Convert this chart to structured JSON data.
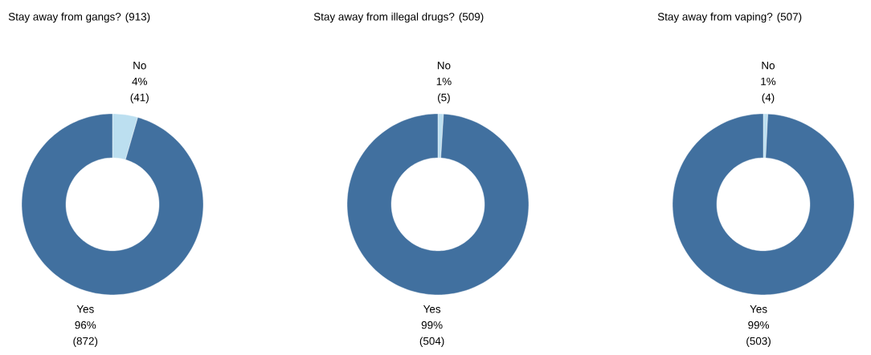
{
  "chart_data": [
    {
      "type": "donut",
      "title": "Stay away from gangs? (913)",
      "categories": [
        "No",
        "Yes"
      ],
      "values": [
        41,
        872
      ],
      "colors": [
        "#bcdff0",
        "#41709f"
      ],
      "value_labels": [
        "4% (41)",
        "96% (872)"
      ]
    },
    {
      "type": "donut",
      "title": "Stay away from illegal drugs? (509)",
      "categories": [
        "No",
        "Yes"
      ],
      "values": [
        5,
        504
      ],
      "colors": [
        "#bcdff0",
        "#41709f"
      ],
      "value_labels": [
        "1% (5)",
        "99% (504)"
      ]
    },
    {
      "type": "donut",
      "title": "Stay away from vaping? (507)",
      "categories": [
        "No",
        "Yes"
      ],
      "values": [
        4,
        503
      ],
      "colors": [
        "#bcdff0",
        "#41709f"
      ],
      "value_labels": [
        "1% (4)",
        "99% (503)"
      ]
    }
  ]
}
